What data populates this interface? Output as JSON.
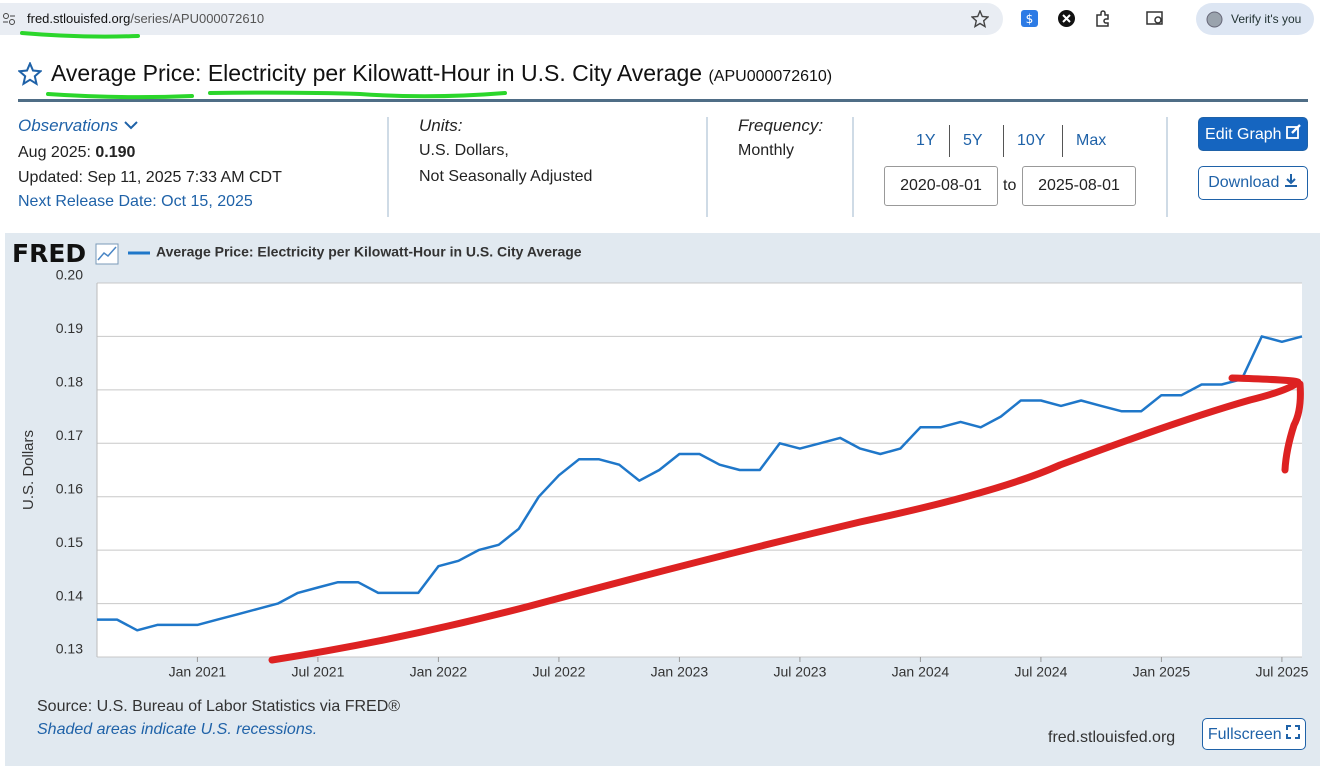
{
  "browser": {
    "url_host": "fred.stlouisfed.org",
    "url_path": "/series/APU000072610",
    "profile": "Verify it's you"
  },
  "header": {
    "title": "Average Price: Electricity per Kilowatt-Hour in U.S. City Average",
    "series_id": "(APU000072610)"
  },
  "meta": {
    "observations_label": "Observations",
    "latest_date": "Aug 2025:",
    "latest_value": "0.190",
    "updated": "Updated: Sep 11, 2025 7:33 AM CDT",
    "next_release": "Next Release Date: Oct 15, 2025",
    "units_label": "Units:",
    "units_line1": "U.S. Dollars,",
    "units_line2": "Not Seasonally Adjusted",
    "frequency_label": "Frequency:",
    "frequency_value": "Monthly",
    "range_buttons": [
      "1Y",
      "5Y",
      "10Y",
      "Max"
    ],
    "date_from": "2020-08-01",
    "date_sep": "to",
    "date_to": "2025-08-01",
    "edit_button": "Edit Graph",
    "download_button": "Download"
  },
  "chart_data": {
    "type": "line",
    "logo": "FRED",
    "y_label": "U.S. Dollars",
    "grid": true,
    "x": [
      "2020-08",
      "2020-09",
      "2020-10",
      "2020-11",
      "2020-12",
      "2021-01",
      "2021-02",
      "2021-03",
      "2021-04",
      "2021-05",
      "2021-06",
      "2021-07",
      "2021-08",
      "2021-09",
      "2021-10",
      "2021-11",
      "2021-12",
      "2022-01",
      "2022-02",
      "2022-03",
      "2022-04",
      "2022-05",
      "2022-06",
      "2022-07",
      "2022-08",
      "2022-09",
      "2022-10",
      "2022-11",
      "2022-12",
      "2023-01",
      "2023-02",
      "2023-03",
      "2023-04",
      "2023-05",
      "2023-06",
      "2023-07",
      "2023-08",
      "2023-09",
      "2023-10",
      "2023-11",
      "2023-12",
      "2024-01",
      "2024-02",
      "2024-03",
      "2024-04",
      "2024-05",
      "2024-06",
      "2024-07",
      "2024-08",
      "2024-09",
      "2024-10",
      "2024-11",
      "2024-12",
      "2025-01",
      "2025-02",
      "2025-03",
      "2025-04",
      "2025-05",
      "2025-06",
      "2025-07",
      "2025-08"
    ],
    "series": [
      {
        "name": "Average Price: Electricity per Kilowatt-Hour in U.S. City Average",
        "color": "#1f77c9",
        "values": [
          0.137,
          0.137,
          0.135,
          0.136,
          0.136,
          0.136,
          0.137,
          0.138,
          0.139,
          0.14,
          0.142,
          0.143,
          0.144,
          0.144,
          0.142,
          0.142,
          0.142,
          0.147,
          0.148,
          0.15,
          0.151,
          0.154,
          0.16,
          0.164,
          0.167,
          0.167,
          0.166,
          0.163,
          0.165,
          0.168,
          0.168,
          0.166,
          0.165,
          0.165,
          0.17,
          0.169,
          0.17,
          0.171,
          0.169,
          0.168,
          0.169,
          0.173,
          0.173,
          0.174,
          0.173,
          0.175,
          0.178,
          0.178,
          0.177,
          0.178,
          0.177,
          0.176,
          0.176,
          0.179,
          0.179,
          0.181,
          0.181,
          0.182,
          0.19,
          0.189,
          0.19
        ]
      }
    ],
    "xlim": [
      "2020-08",
      "2025-08"
    ],
    "xticks": [
      {
        "value": "2021-01",
        "label": "Jan 2021"
      },
      {
        "value": "2021-07",
        "label": "Jul 2021"
      },
      {
        "value": "2022-01",
        "label": "Jan 2022"
      },
      {
        "value": "2022-07",
        "label": "Jul 2022"
      },
      {
        "value": "2023-01",
        "label": "Jan 2023"
      },
      {
        "value": "2023-07",
        "label": "Jul 2023"
      },
      {
        "value": "2024-01",
        "label": "Jan 2024"
      },
      {
        "value": "2024-07",
        "label": "Jul 2024"
      },
      {
        "value": "2025-01",
        "label": "Jan 2025"
      },
      {
        "value": "2025-07",
        "label": "Jul 2025"
      }
    ],
    "ylim": [
      0.13,
      0.2
    ],
    "yticks": [
      0.13,
      0.14,
      0.15,
      0.16,
      0.17,
      0.18,
      0.19,
      {
        "value": 0.2,
        "label": "0.20"
      }
    ]
  },
  "footer": {
    "source": "Source: U.S. Bureau of Labor Statistics via FRED®",
    "note": "Shaded areas indicate U.S. recessions.",
    "site": "fred.stlouisfed.org",
    "fullscreen": "Fullscreen"
  }
}
